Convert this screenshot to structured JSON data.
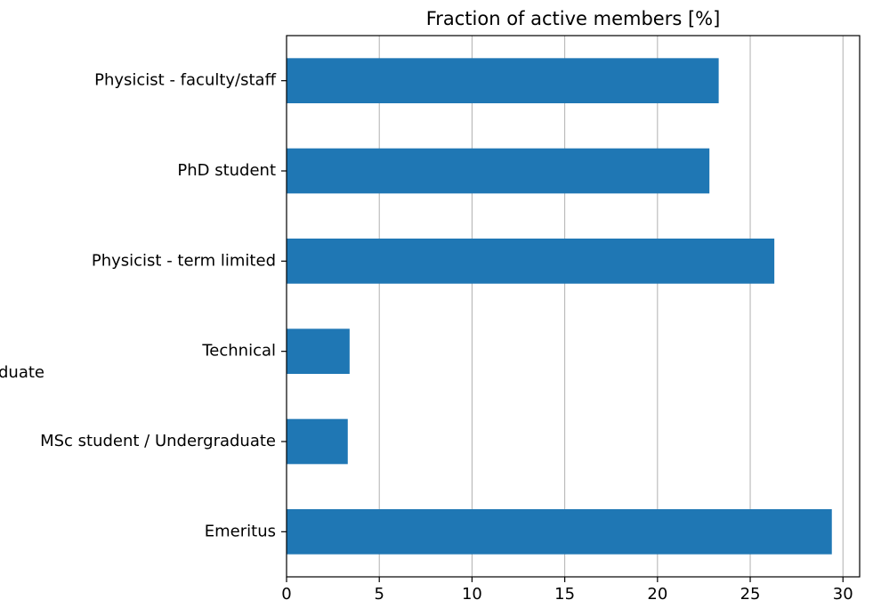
{
  "chart_data": {
    "type": "barh",
    "title": "Fraction of active members [%]",
    "annotation": "duate",
    "categories": [
      "Physicist - faculty/staff",
      "PhD student",
      "Physicist - term limited",
      "Technical",
      "MSc student / Undergraduate",
      "Emeritus"
    ],
    "values": [
      23.3,
      22.8,
      26.3,
      3.4,
      3.3,
      29.4
    ],
    "color": "#1f77b4",
    "xlim": [
      0,
      30.9
    ],
    "xticks": [
      0,
      5,
      10,
      15,
      20,
      25,
      30
    ],
    "grid": true
  }
}
